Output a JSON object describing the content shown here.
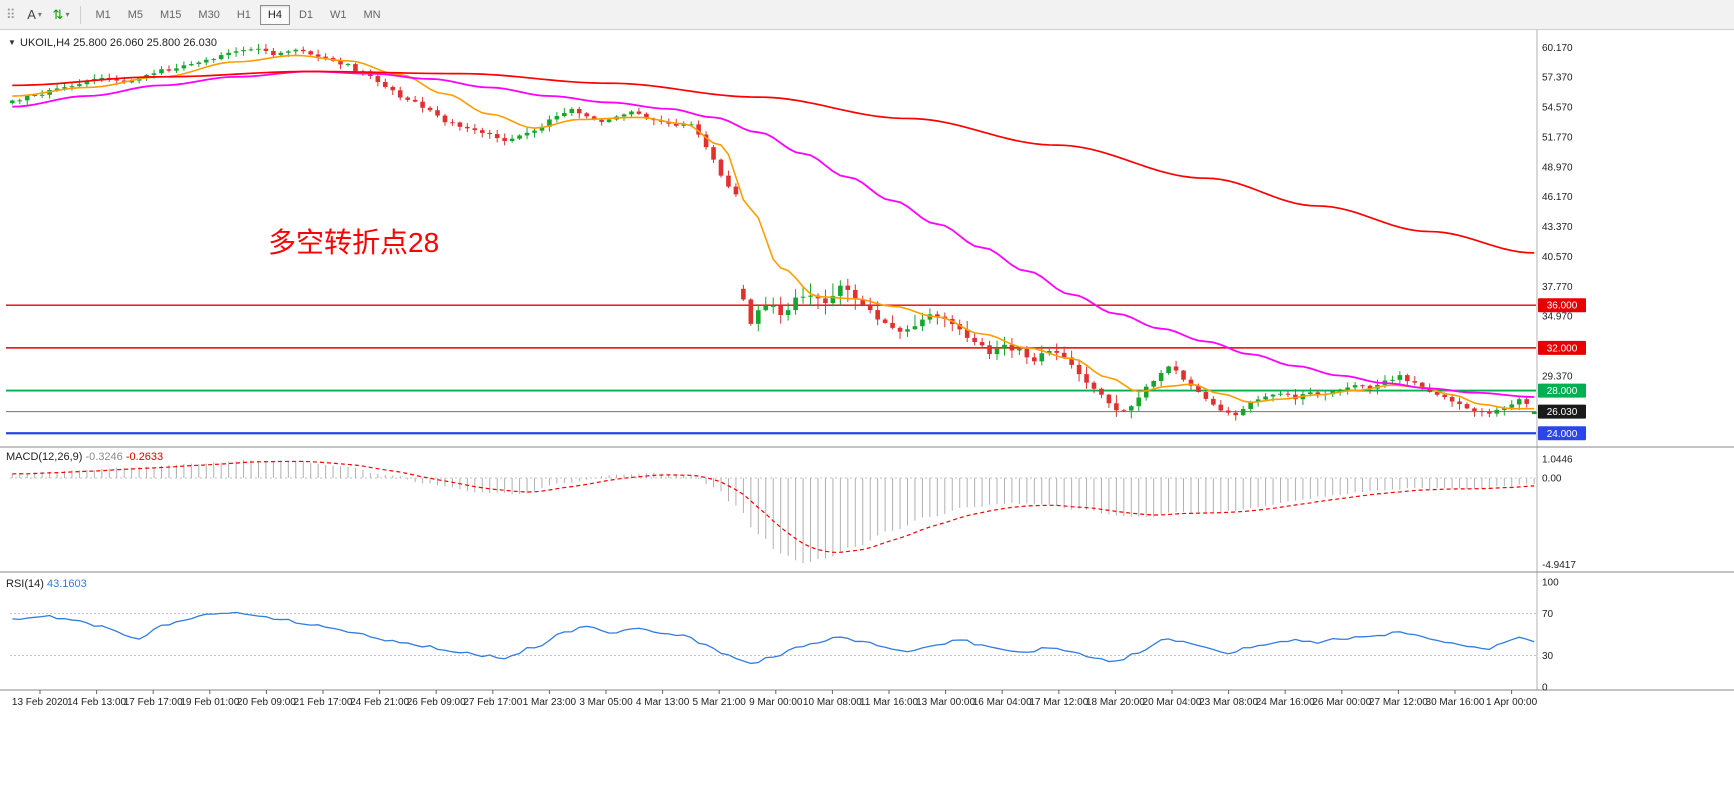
{
  "toolbar": {
    "handle_glyph": "⠿",
    "tools": [
      {
        "id": "text-tool",
        "label": "A",
        "caret": "▾"
      },
      {
        "id": "scale-tool",
        "glyph": "⇅",
        "caret": "▾",
        "color": "#0a9a0a"
      }
    ],
    "timeframes": [
      "M1",
      "M5",
      "M15",
      "M30",
      "H1",
      "H4",
      "D1",
      "W1",
      "MN"
    ],
    "active_timeframe": "H4"
  },
  "chart": {
    "symbol_info": {
      "collapse_glyph": "▼",
      "text": "UKOIL,H4 25.800 26.060 25.800 26.030"
    },
    "annotation": {
      "text": "多空转折点28",
      "color": "#ff0000"
    },
    "price_axis_labels": [
      "60.170",
      "57.370",
      "54.570",
      "51.770",
      "48.970",
      "46.170",
      "43.370",
      "40.570",
      "37.770",
      "34.970",
      "32.170",
      "29.370"
    ],
    "levels": [
      {
        "price": 36.0,
        "label": "36.000",
        "color": "#e60000",
        "badge_bg": "#e60000",
        "width": 1.4
      },
      {
        "price": 32.0,
        "label": "32.000",
        "color": "#e60000",
        "badge_bg": "#e60000",
        "width": 1.4
      },
      {
        "price": 28.0,
        "label": "28.000",
        "color": "#00b050",
        "badge_bg": "#00b050",
        "width": 1.8
      },
      {
        "price": 26.03,
        "label": "26.030",
        "color": "#5a7a9a",
        "badge_bg": "#1a1a1a",
        "width": 1
      },
      {
        "price": 24.0,
        "label": "24.000",
        "color": "#2a46e8",
        "badge_bg": "#2a46e8",
        "width": 2.2
      }
    ],
    "time_axis": [
      "13 Feb 2020",
      "14 Feb 13:00",
      "17 Feb 17:00",
      "19 Feb 01:00",
      "20 Feb 09:00",
      "21 Feb 17:00",
      "24 Feb 21:00",
      "26 Feb 09:00",
      "27 Feb 17:00",
      "1 Mar 23:00",
      "3 Mar 05:00",
      "4 Mar 13:00",
      "5 Mar 21:00",
      "9 Mar 00:00",
      "10 Mar 08:00",
      "11 Mar 16:00",
      "13 Mar 00:00",
      "16 Mar 04:00",
      "17 Mar 12:00",
      "18 Mar 20:00",
      "20 Mar 04:00",
      "23 Mar 08:00",
      "24 Mar 16:00",
      "26 Mar 00:00",
      "27 Mar 12:00",
      "30 Mar 16:00",
      "1 Apr 00:00"
    ]
  },
  "indicators": {
    "macd": {
      "label": "MACD(12,26,9)",
      "main_value": "-0.3246",
      "signal_value": "-0.2633",
      "axis_max": "1.0446",
      "axis_zero": "0.00",
      "axis_min": "-4.9417"
    },
    "rsi": {
      "label": "RSI(14)",
      "value": "43.1603",
      "axis": [
        "100",
        "70",
        "30",
        "0"
      ],
      "level_lines": [
        70,
        30
      ]
    }
  },
  "chart_data": {
    "type": "candlestick",
    "symbol": "UKOIL",
    "timeframe": "H4",
    "bars": 205,
    "price_range": [
      22.9,
      61.6
    ],
    "current_bar": {
      "open": 25.8,
      "high": 26.06,
      "low": 25.8,
      "close": 26.03
    },
    "close_anchors": [
      [
        0,
        55.2
      ],
      [
        3,
        55.7
      ],
      [
        6,
        56.2
      ],
      [
        9,
        56.8
      ],
      [
        12,
        57.3
      ],
      [
        15,
        57.0
      ],
      [
        18,
        57.6
      ],
      [
        21,
        58.1
      ],
      [
        24,
        58.7
      ],
      [
        27,
        59.2
      ],
      [
        30,
        59.8
      ],
      [
        33,
        60.1
      ],
      [
        35,
        59.5
      ],
      [
        38,
        59.9
      ],
      [
        41,
        59.4
      ],
      [
        44,
        58.7
      ],
      [
        47,
        57.8
      ],
      [
        50,
        56.5
      ],
      [
        53,
        55.2
      ],
      [
        56,
        54.3
      ],
      [
        58,
        53.2
      ],
      [
        61,
        52.6
      ],
      [
        64,
        52.0
      ],
      [
        66,
        51.3
      ],
      [
        68,
        51.9
      ],
      [
        70,
        52.4
      ],
      [
        73,
        53.7
      ],
      [
        75,
        54.4
      ],
      [
        77,
        53.8
      ],
      [
        79,
        53.2
      ],
      [
        81,
        53.7
      ],
      [
        83,
        54.2
      ],
      [
        85,
        53.6
      ],
      [
        87,
        53.1
      ],
      [
        89,
        52.8
      ],
      [
        91,
        53.0
      ],
      [
        93,
        50.8
      ],
      [
        95,
        48.2
      ],
      [
        97,
        46.3
      ],
      [
        98,
        36.8
      ],
      [
        99,
        34.6
      ],
      [
        100,
        35.6
      ],
      [
        101,
        36.3
      ],
      [
        103,
        35.1
      ],
      [
        105,
        36.6
      ],
      [
        107,
        37.2
      ],
      [
        109,
        36.5
      ],
      [
        111,
        37.6
      ],
      [
        113,
        36.8
      ],
      [
        115,
        35.2
      ],
      [
        117,
        34.1
      ],
      [
        119,
        33.5
      ],
      [
        121,
        34.4
      ],
      [
        123,
        35.3
      ],
      [
        125,
        34.6
      ],
      [
        127,
        33.6
      ],
      [
        129,
        32.7
      ],
      [
        131,
        31.5
      ],
      [
        133,
        32.3
      ],
      [
        135,
        31.7
      ],
      [
        137,
        30.8
      ],
      [
        139,
        31.9
      ],
      [
        141,
        30.9
      ],
      [
        143,
        29.6
      ],
      [
        145,
        28.1
      ],
      [
        147,
        26.7
      ],
      [
        149,
        26.1
      ],
      [
        151,
        27.4
      ],
      [
        153,
        28.9
      ],
      [
        155,
        30.3
      ],
      [
        156,
        29.8
      ],
      [
        158,
        28.3
      ],
      [
        160,
        27.1
      ],
      [
        162,
        26.2
      ],
      [
        164,
        25.7
      ],
      [
        166,
        26.8
      ],
      [
        168,
        27.4
      ],
      [
        170,
        27.8
      ],
      [
        172,
        27.3
      ],
      [
        174,
        27.9
      ],
      [
        176,
        27.6
      ],
      [
        178,
        28.1
      ],
      [
        180,
        28.5
      ],
      [
        182,
        28.2
      ],
      [
        184,
        28.9
      ],
      [
        186,
        29.3
      ],
      [
        188,
        28.6
      ],
      [
        190,
        28.0
      ],
      [
        192,
        27.4
      ],
      [
        194,
        26.7
      ],
      [
        196,
        26.1
      ],
      [
        198,
        25.8
      ],
      [
        200,
        26.5
      ],
      [
        202,
        27.2
      ],
      [
        204,
        26.03
      ]
    ],
    "volatility_zones": [
      [
        0,
        97,
        0.28
      ],
      [
        98,
        122,
        0.75
      ],
      [
        123,
        152,
        0.5
      ],
      [
        153,
        204,
        0.33
      ]
    ],
    "gap_threshold": 4,
    "ma_fast_anchors": [
      [
        0,
        55.6
      ],
      [
        10,
        56.4
      ],
      [
        20,
        57.4
      ],
      [
        30,
        58.8
      ],
      [
        38,
        59.4
      ],
      [
        45,
        58.9
      ],
      [
        52,
        57.6
      ],
      [
        58,
        55.8
      ],
      [
        64,
        53.9
      ],
      [
        70,
        52.6
      ],
      [
        76,
        53.4
      ],
      [
        84,
        53.6
      ],
      [
        90,
        53.0
      ],
      [
        95,
        51.0
      ],
      [
        99,
        45.0
      ],
      [
        103,
        39.5
      ],
      [
        108,
        36.8
      ],
      [
        113,
        36.6
      ],
      [
        118,
        35.9
      ],
      [
        124,
        34.9
      ],
      [
        130,
        33.3
      ],
      [
        136,
        32.0
      ],
      [
        142,
        31.0
      ],
      [
        147,
        29.2
      ],
      [
        151,
        27.9
      ],
      [
        155,
        28.4
      ],
      [
        158,
        28.6
      ],
      [
        162,
        27.7
      ],
      [
        166,
        26.9
      ],
      [
        170,
        27.2
      ],
      [
        175,
        27.6
      ],
      [
        180,
        28.0
      ],
      [
        185,
        28.5
      ],
      [
        189,
        28.3
      ],
      [
        193,
        27.6
      ],
      [
        197,
        26.7
      ],
      [
        201,
        26.3
      ],
      [
        204,
        26.3
      ]
    ],
    "ma_mid_anchors": [
      [
        0,
        54.6
      ],
      [
        10,
        55.6
      ],
      [
        20,
        56.6
      ],
      [
        30,
        57.4
      ],
      [
        40,
        57.9
      ],
      [
        48,
        57.7
      ],
      [
        56,
        57.2
      ],
      [
        64,
        56.4
      ],
      [
        72,
        55.6
      ],
      [
        80,
        55.0
      ],
      [
        88,
        54.4
      ],
      [
        94,
        53.6
      ],
      [
        100,
        52.2
      ],
      [
        106,
        50.2
      ],
      [
        112,
        48.0
      ],
      [
        118,
        45.8
      ],
      [
        124,
        43.6
      ],
      [
        130,
        41.4
      ],
      [
        136,
        39.2
      ],
      [
        142,
        37.0
      ],
      [
        148,
        35.2
      ],
      [
        154,
        33.8
      ],
      [
        160,
        32.6
      ],
      [
        166,
        31.4
      ],
      [
        172,
        30.3
      ],
      [
        178,
        29.4
      ],
      [
        184,
        28.7
      ],
      [
        190,
        28.2
      ],
      [
        196,
        27.8
      ],
      [
        204,
        27.4
      ]
    ],
    "ma_slow_anchors": [
      [
        0,
        56.6
      ],
      [
        20,
        57.4
      ],
      [
        40,
        57.9
      ],
      [
        60,
        57.7
      ],
      [
        80,
        56.8
      ],
      [
        100,
        55.5
      ],
      [
        120,
        53.5
      ],
      [
        140,
        51.0
      ],
      [
        160,
        47.9
      ],
      [
        175,
        45.3
      ],
      [
        190,
        42.9
      ],
      [
        204,
        40.9
      ]
    ],
    "macd_range": [
      -4.9417,
      1.0446
    ],
    "macd_anchors": [
      [
        0,
        0.25
      ],
      [
        8,
        0.4
      ],
      [
        16,
        0.6
      ],
      [
        24,
        0.8
      ],
      [
        32,
        1.0
      ],
      [
        38,
        0.95
      ],
      [
        44,
        0.7
      ],
      [
        50,
        0.2
      ],
      [
        56,
        -0.35
      ],
      [
        62,
        -0.8
      ],
      [
        68,
        -0.9
      ],
      [
        74,
        -0.3
      ],
      [
        80,
        0.15
      ],
      [
        86,
        0.3
      ],
      [
        91,
        0.1
      ],
      [
        94,
        -0.5
      ],
      [
        97,
        -1.6
      ],
      [
        100,
        -3.2
      ],
      [
        103,
        -4.3
      ],
      [
        106,
        -4.85
      ],
      [
        109,
        -4.6
      ],
      [
        113,
        -3.9
      ],
      [
        118,
        -3.0
      ],
      [
        123,
        -2.2
      ],
      [
        128,
        -1.7
      ],
      [
        133,
        -1.45
      ],
      [
        138,
        -1.5
      ],
      [
        143,
        -1.8
      ],
      [
        148,
        -2.15
      ],
      [
        152,
        -2.25
      ],
      [
        156,
        -1.95
      ],
      [
        160,
        -2.0
      ],
      [
        164,
        -1.85
      ],
      [
        168,
        -1.6
      ],
      [
        172,
        -1.3
      ],
      [
        176,
        -1.05
      ],
      [
        180,
        -0.85
      ],
      [
        184,
        -0.7
      ],
      [
        188,
        -0.6
      ],
      [
        192,
        -0.58
      ],
      [
        196,
        -0.62
      ],
      [
        200,
        -0.5
      ],
      [
        204,
        -0.3246
      ]
    ],
    "rsi_anchors": [
      [
        0,
        64
      ],
      [
        4,
        68
      ],
      [
        8,
        64
      ],
      [
        12,
        58
      ],
      [
        15,
        50
      ],
      [
        17,
        45
      ],
      [
        20,
        58
      ],
      [
        23,
        64
      ],
      [
        26,
        69
      ],
      [
        30,
        71
      ],
      [
        33,
        67
      ],
      [
        36,
        64
      ],
      [
        40,
        60
      ],
      [
        45,
        53
      ],
      [
        50,
        45
      ],
      [
        55,
        39
      ],
      [
        60,
        33
      ],
      [
        63,
        30
      ],
      [
        66,
        28
      ],
      [
        70,
        38
      ],
      [
        74,
        52
      ],
      [
        77,
        57
      ],
      [
        80,
        52
      ],
      [
        84,
        56
      ],
      [
        87,
        51
      ],
      [
        90,
        49
      ],
      [
        93,
        40
      ],
      [
        96,
        30
      ],
      [
        99,
        22
      ],
      [
        102,
        29
      ],
      [
        105,
        37
      ],
      [
        108,
        42
      ],
      [
        111,
        48
      ],
      [
        114,
        43
      ],
      [
        117,
        37
      ],
      [
        120,
        33
      ],
      [
        124,
        40
      ],
      [
        127,
        45
      ],
      [
        130,
        39
      ],
      [
        133,
        35
      ],
      [
        136,
        32
      ],
      [
        139,
        38
      ],
      [
        142,
        34
      ],
      [
        145,
        28
      ],
      [
        148,
        24
      ],
      [
        151,
        33
      ],
      [
        155,
        46
      ],
      [
        157,
        43
      ],
      [
        160,
        37
      ],
      [
        163,
        32
      ],
      [
        166,
        38
      ],
      [
        169,
        42
      ],
      [
        172,
        45
      ],
      [
        175,
        42
      ],
      [
        178,
        46
      ],
      [
        181,
        48
      ],
      [
        184,
        50
      ],
      [
        186,
        53
      ],
      [
        188,
        49
      ],
      [
        190,
        46
      ],
      [
        193,
        42
      ],
      [
        196,
        38
      ],
      [
        198,
        36
      ],
      [
        200,
        43
      ],
      [
        202,
        47
      ],
      [
        204,
        43.2
      ]
    ],
    "colors": {
      "up": "#17a62c",
      "down": "#e03030",
      "ma_fast": "#ff9d00",
      "ma_mid": "#ff00ff",
      "ma_slow": "#ff0000",
      "macd_hist": "#b0b0b0",
      "macd_signal": "#ff0000",
      "rsi": "#2f7de0"
    }
  }
}
